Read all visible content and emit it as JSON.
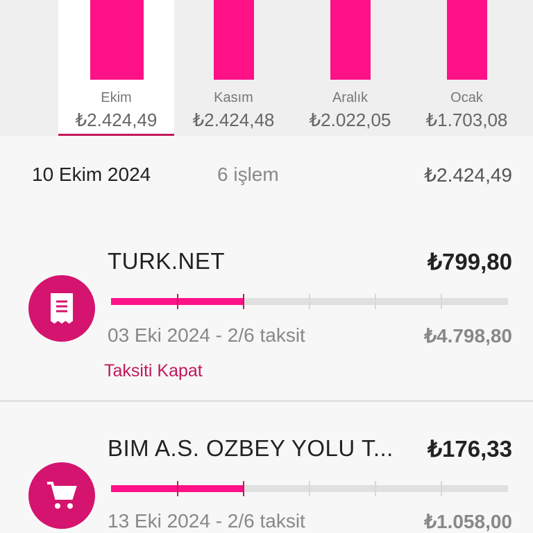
{
  "chart_data": {
    "type": "bar",
    "categories": [
      "Ekim",
      "Kasım",
      "Aralık",
      "Ocak"
    ],
    "values": [
      2424.49,
      2424.48,
      2022.05,
      1703.08
    ],
    "value_labels": [
      "₺2.424,49",
      "₺2.424,48",
      "₺2.022,05",
      "₺1.703,08"
    ],
    "selected": "Ekim",
    "bar_color": "#ff1188"
  },
  "summary": {
    "date": "10 Ekim 2024",
    "count": "6 işlem",
    "total": "₺2.424,49"
  },
  "transactions": [
    {
      "name": "TURK.NET",
      "amount": "₺799,80",
      "date_installment": "03 Eki 2024 - 2/6 taksit",
      "total": "₺4.798,80",
      "action": "Taksiti Kapat",
      "icon": "receipt-icon",
      "progress": 0.3333
    },
    {
      "name": "BIM A.S. OZBEY YOLU T...",
      "amount": "₺176,33",
      "date_installment": "13 Eki 2024 - 2/6 taksit",
      "total": "₺1.058,00",
      "icon": "cart-icon",
      "progress": 0.3333
    }
  ],
  "colors": {
    "accent": "#ff1188",
    "icon_bg": "#d4146f",
    "link": "#c2185b"
  }
}
